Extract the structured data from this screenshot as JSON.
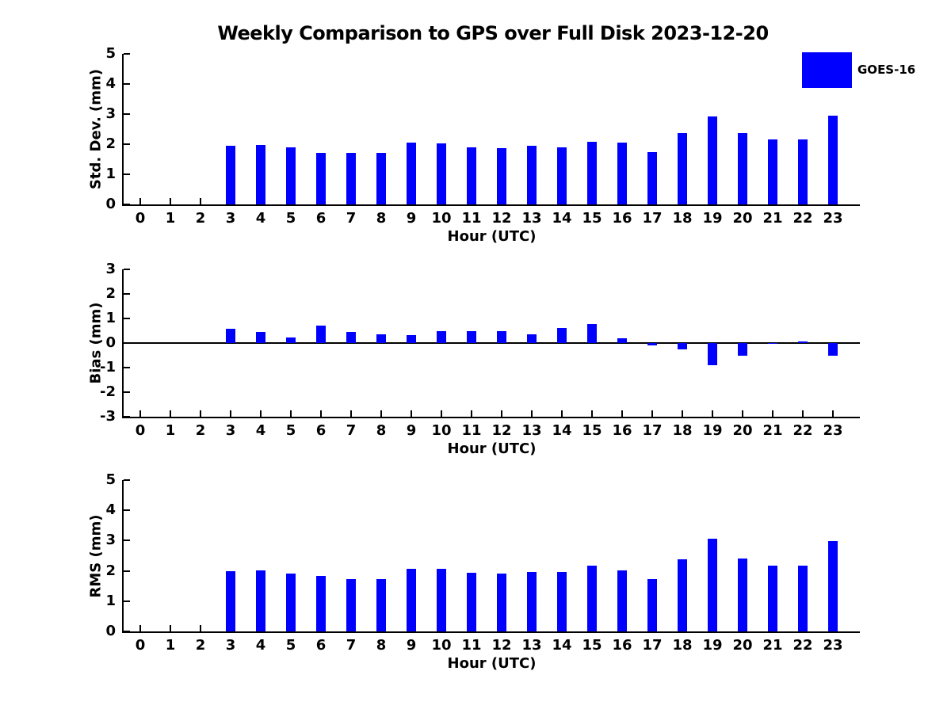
{
  "title": "Weekly Comparison to GPS over Full Disk 2023-12-20",
  "legend": {
    "label": "GOES-16",
    "color": "#0000FF",
    "position": "top-right"
  },
  "colors": {
    "bar": "#0000FF",
    "axis": "#000000",
    "text": "#000000",
    "background": "#FFFFFF"
  },
  "chart_data": [
    {
      "type": "bar",
      "name": "std-dev",
      "title": "",
      "ylabel": "Std. Dev. (mm)",
      "xlabel": "Hour (UTC)",
      "categories": [
        0,
        1,
        2,
        3,
        4,
        5,
        6,
        7,
        8,
        9,
        10,
        11,
        12,
        13,
        14,
        15,
        16,
        17,
        18,
        19,
        20,
        21,
        22,
        23
      ],
      "values": [
        null,
        null,
        null,
        1.95,
        1.97,
        1.89,
        1.71,
        1.71,
        1.71,
        2.05,
        2.02,
        1.9,
        1.87,
        1.94,
        1.9,
        2.07,
        2.04,
        1.73,
        2.38,
        2.91,
        2.38,
        2.17,
        2.17,
        2.94
      ],
      "ylim": [
        0,
        5
      ],
      "ytick_step": 1,
      "grid": false,
      "series_name": "GOES-16"
    },
    {
      "type": "bar",
      "name": "bias",
      "title": "",
      "ylabel": "Bias (mm)",
      "xlabel": "Hour (UTC)",
      "categories": [
        0,
        1,
        2,
        3,
        4,
        5,
        6,
        7,
        8,
        9,
        10,
        11,
        12,
        13,
        14,
        15,
        16,
        17,
        18,
        19,
        20,
        21,
        22,
        23
      ],
      "values": [
        null,
        null,
        null,
        0.57,
        0.45,
        0.24,
        0.71,
        0.45,
        0.35,
        0.33,
        0.47,
        0.5,
        0.48,
        0.36,
        0.62,
        0.77,
        0.18,
        -0.09,
        -0.27,
        -0.89,
        -0.52,
        -0.03,
        0.08,
        -0.53
      ],
      "ylim": [
        -3,
        3
      ],
      "ytick_step": 1,
      "grid": false,
      "zero_line": true,
      "series_name": "GOES-16"
    },
    {
      "type": "bar",
      "name": "rms",
      "title": "",
      "ylabel": "RMS (mm)",
      "xlabel": "Hour (UTC)",
      "categories": [
        0,
        1,
        2,
        3,
        4,
        5,
        6,
        7,
        8,
        9,
        10,
        11,
        12,
        13,
        14,
        15,
        16,
        17,
        18,
        19,
        20,
        21,
        22,
        23
      ],
      "values": [
        null,
        null,
        null,
        2.0,
        2.01,
        1.9,
        1.83,
        1.73,
        1.73,
        2.07,
        2.07,
        1.95,
        1.91,
        1.97,
        1.97,
        2.18,
        2.02,
        1.73,
        2.39,
        3.05,
        2.42,
        2.16,
        2.16,
        2.98
      ],
      "ylim": [
        0,
        5
      ],
      "ytick_step": 1,
      "grid": false,
      "series_name": "GOES-16"
    }
  ]
}
